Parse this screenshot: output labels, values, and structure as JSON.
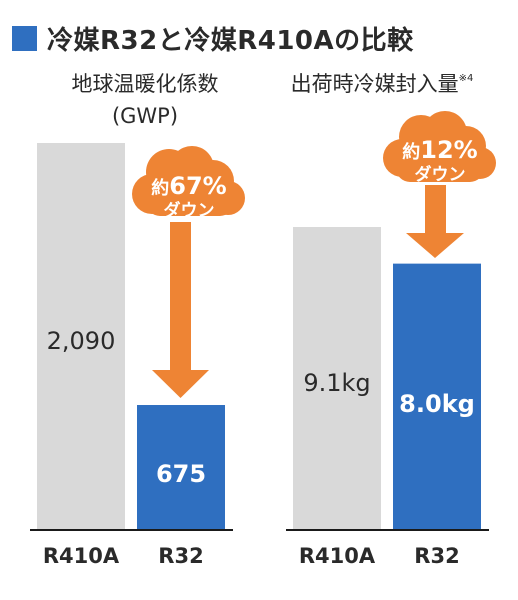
{
  "title": "冷媒R32と冷媒R410Aの比較",
  "colors": {
    "title_marker": "#2f6fc0",
    "bar_r410a": "#d9d9d9",
    "bar_r32": "#2f6fc0",
    "arrow": "#ee8434",
    "cloud": "#ee8434",
    "baseline": "#1a1a1a"
  },
  "chart_data": [
    {
      "type": "bar",
      "title_lines": [
        "地球温暖化係数",
        "(GWP)"
      ],
      "categories": [
        "R410A",
        "R32"
      ],
      "values": [
        2090,
        675
      ],
      "value_labels": [
        "2,090",
        "675"
      ],
      "ylim": [
        0,
        2090
      ],
      "callout": {
        "prefix": "約",
        "value": "67%",
        "suffix": "ダウン"
      }
    },
    {
      "type": "bar",
      "title_main": "出荷時冷媒封入量",
      "title_note": "※4",
      "categories": [
        "R410A",
        "R32"
      ],
      "values": [
        9.1,
        8.0
      ],
      "value_labels": [
        "9.1kg",
        "8.0kg"
      ],
      "unit": "kg",
      "ylim": [
        0,
        9.1
      ],
      "callout": {
        "prefix": "約",
        "value": "12%",
        "suffix": "ダウン"
      }
    }
  ]
}
